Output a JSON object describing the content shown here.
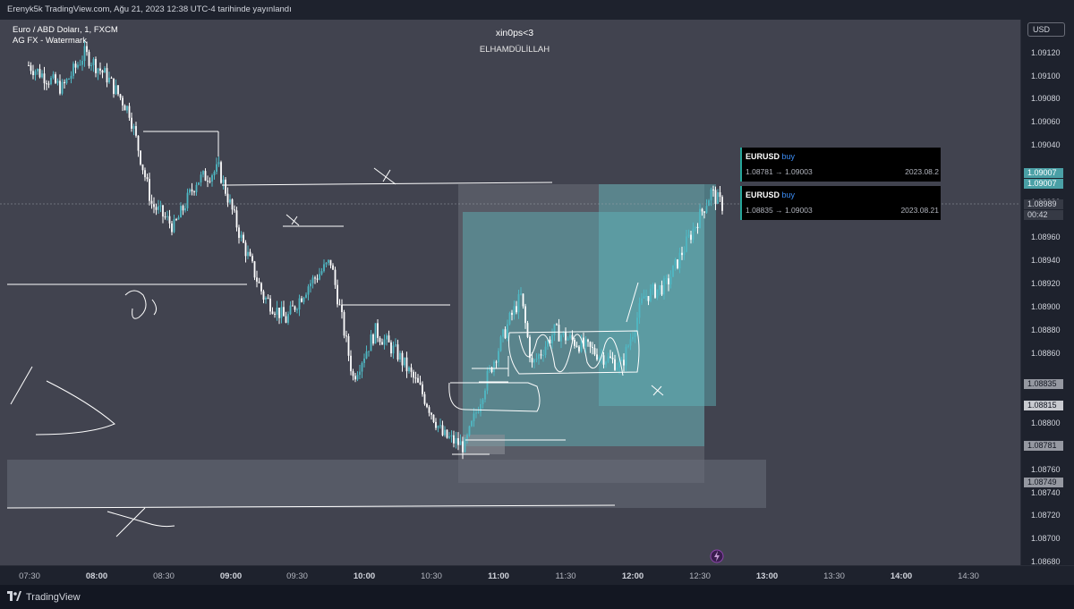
{
  "header": {
    "publish_note": "Erenyk5k TradingView.com, Ağu 21, 2023 12:38 UTC-4 tarihinde yayınlandı"
  },
  "legend": {
    "symbol_line": "Euro / ABD Doları, 1, FXCM",
    "indicator_line": "AG FX - Watermark"
  },
  "watermark": {
    "title": "xin0ps<3",
    "subtitle": "ELHAMDÜLİLLAH"
  },
  "currency_button": "USD",
  "price_axis": {
    "labels": [
      "1.09120",
      "1.09100",
      "1.09080",
      "1.09060",
      "1.09040",
      "1.08980",
      "1.08960",
      "1.08940",
      "1.08920",
      "1.08900",
      "1.08880",
      "1.08860",
      "1.08800",
      "1.08760",
      "1.08740",
      "1.08720",
      "1.08700",
      "1.08680"
    ],
    "tags": [
      {
        "text": "1.09007",
        "bg": "#4aa0a6",
        "fg": "#ffffff"
      },
      {
        "text": "1.09007",
        "bg": "#4aa0a6",
        "fg": "#ffffff"
      },
      {
        "text": "1.08989",
        "bg": "#363a45",
        "fg": "#d1d4dc"
      },
      {
        "text": "00:42",
        "bg": "#363a45",
        "fg": "#d1d4dc"
      },
      {
        "text": "1.08835",
        "bg": "#9598a1",
        "fg": "#131722"
      },
      {
        "text": "1.08815",
        "bg": "#c8cad0",
        "fg": "#131722"
      },
      {
        "text": "1.08781",
        "bg": "#9598a1",
        "fg": "#131722"
      },
      {
        "text": "1.08749",
        "bg": "#9598a1",
        "fg": "#131722"
      }
    ]
  },
  "time_axis": {
    "labels": [
      {
        "text": "07:30",
        "bold": false
      },
      {
        "text": "08:00",
        "bold": true
      },
      {
        "text": "08:30",
        "bold": false
      },
      {
        "text": "09:00",
        "bold": true
      },
      {
        "text": "09:30",
        "bold": false
      },
      {
        "text": "10:00",
        "bold": true
      },
      {
        "text": "10:30",
        "bold": false
      },
      {
        "text": "11:00",
        "bold": true
      },
      {
        "text": "11:30",
        "bold": false
      },
      {
        "text": "12:00",
        "bold": true
      },
      {
        "text": "12:30",
        "bold": false
      },
      {
        "text": "13:00",
        "bold": true
      },
      {
        "text": "13:30",
        "bold": false
      },
      {
        "text": "14:00",
        "bold": true
      },
      {
        "text": "14:30",
        "bold": false
      }
    ]
  },
  "position_cards": [
    {
      "symbol": "EURUSD",
      "side": "buy",
      "prices": "1.08781 → 1.09003",
      "date": "2023.08.2"
    },
    {
      "symbol": "EURUSD",
      "side": "buy",
      "prices": "1.08835 → 1.09003",
      "date": "2023.08.21"
    }
  ],
  "footer": {
    "brand": "TradingView"
  },
  "colors": {
    "bull": "#4fb8c4",
    "bear": "#ffffff",
    "background": "#41434f",
    "zone": "#5fb7bd"
  },
  "chart_data": {
    "type": "candlestick",
    "title": "Euro / ABD Doları, 1, FXCM",
    "x_range": [
      "07:30",
      "14:30"
    ],
    "ylim": [
      1.0868,
      1.0913
    ],
    "close_path": [
      [
        "07:30",
        1.0911
      ],
      [
        "07:45",
        1.0909
      ],
      [
        "07:55",
        1.0912
      ],
      [
        "08:05",
        1.091
      ],
      [
        "08:15",
        1.0907
      ],
      [
        "08:25",
        1.0899
      ],
      [
        "08:35",
        1.0897
      ],
      [
        "08:45",
        1.0901
      ],
      [
        "08:55",
        1.0902
      ],
      [
        "09:05",
        1.0896
      ],
      [
        "09:15",
        1.0891
      ],
      [
        "09:25",
        1.0889
      ],
      [
        "09:35",
        1.0892
      ],
      [
        "09:45",
        1.0894
      ],
      [
        "09:55",
        1.0884
      ],
      [
        "10:05",
        1.0888
      ],
      [
        "10:15",
        1.0886
      ],
      [
        "10:25",
        1.0883
      ],
      [
        "10:35",
        1.0879
      ],
      [
        "10:45",
        1.0878
      ],
      [
        "10:55",
        1.0884
      ],
      [
        "11:05",
        1.0889
      ],
      [
        "11:10",
        1.0891
      ],
      [
        "11:15",
        1.0885
      ],
      [
        "11:25",
        1.0888
      ],
      [
        "11:35",
        1.0887
      ],
      [
        "11:45",
        1.0886
      ],
      [
        "11:55",
        1.0885
      ],
      [
        "12:05",
        1.0891
      ],
      [
        "12:15",
        1.0892
      ],
      [
        "12:25",
        1.0896
      ],
      [
        "12:35",
        1.09
      ],
      [
        "12:40",
        1.08989
      ]
    ],
    "last_price": 1.08989,
    "levels": [
      1.09007,
      1.08835,
      1.08815,
      1.08781,
      1.08749
    ]
  }
}
